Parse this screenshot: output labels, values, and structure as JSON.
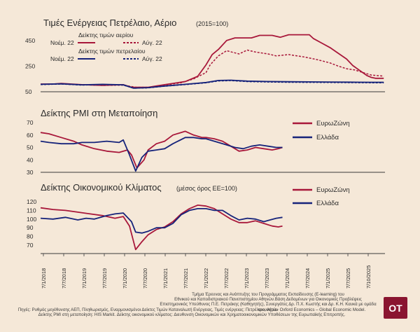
{
  "colors": {
    "red": "#a8173a",
    "blue": "#16237a",
    "axis": "#3a3a3a",
    "background": "#f5e8d8"
  },
  "x_ticks": [
    "7/1/2018",
    "7/7/2018",
    "7/1/2019",
    "7/7/2019",
    "7/1/2020",
    "7/7/2020",
    "7/1/2021",
    "7/7/2021",
    "7/1/2022",
    "7/7/2022",
    "7/1/2023",
    "7/7/2023",
    "7/1/2024",
    "7/7/2024",
    "7/1/2025",
    "7/7/2025",
    "7/10/2025"
  ],
  "chart_data": [
    {
      "type": "line",
      "title": "Τιμές Ενέργειας Πετρέλαιο, Αέριο",
      "subtitle": "(2015=100)",
      "yticks": [
        50,
        250,
        450
      ],
      "ylim": [
        50,
        520
      ],
      "legend": {
        "gas_title": "Δείκτης τιμών αερίου",
        "oil_title": "Δείκτης τιμών πετρελαίου",
        "solid_label": "Νοέμ. 22",
        "dashed_label": "Αύγ. 22"
      },
      "series": [
        {
          "key": "gas_nov",
          "color": "red",
          "dashed": false,
          "points": [
            [
              2018.0,
              110
            ],
            [
              2018.3,
              110
            ],
            [
              2018.5,
              115
            ],
            [
              2019.0,
              105
            ],
            [
              2019.5,
              100
            ],
            [
              2020.0,
              105
            ],
            [
              2020.2,
              85
            ],
            [
              2020.6,
              85
            ],
            [
              2021.0,
              105
            ],
            [
              2021.5,
              130
            ],
            [
              2021.8,
              170
            ],
            [
              2022.0,
              260
            ],
            [
              2022.15,
              340
            ],
            [
              2022.3,
              380
            ],
            [
              2022.5,
              450
            ],
            [
              2022.7,
              470
            ],
            [
              2023.1,
              470
            ],
            [
              2023.3,
              490
            ],
            [
              2023.6,
              490
            ],
            [
              2023.8,
              475
            ],
            [
              2024.0,
              495
            ],
            [
              2024.5,
              495
            ],
            [
              2024.6,
              465
            ],
            [
              2024.8,
              430
            ],
            [
              2025.0,
              395
            ],
            [
              2025.2,
              350
            ],
            [
              2025.4,
              305
            ],
            [
              2025.55,
              255
            ],
            [
              2025.7,
              220
            ],
            [
              2025.9,
              175
            ],
            [
              2026.0,
              162
            ],
            [
              2026.1,
              155
            ],
            [
              2026.3,
              155
            ]
          ]
        },
        {
          "key": "gas_aug",
          "color": "red",
          "dashed": true,
          "points": [
            [
              2018.0,
              108
            ],
            [
              2018.5,
              112
            ],
            [
              2019.0,
              105
            ],
            [
              2019.5,
              100
            ],
            [
              2020.0,
              102
            ],
            [
              2020.3,
              85
            ],
            [
              2020.7,
              85
            ],
            [
              2021.0,
              102
            ],
            [
              2021.4,
              120
            ],
            [
              2021.7,
              150
            ],
            [
              2022.0,
              200
            ],
            [
              2022.1,
              260
            ],
            [
              2022.3,
              330
            ],
            [
              2022.5,
              370
            ],
            [
              2022.8,
              345
            ],
            [
              2023.0,
              375
            ],
            [
              2023.2,
              360
            ],
            [
              2023.5,
              345
            ],
            [
              2023.7,
              330
            ],
            [
              2024.0,
              340
            ],
            [
              2024.4,
              320
            ],
            [
              2024.7,
              300
            ],
            [
              2025.0,
              275
            ],
            [
              2025.2,
              250
            ],
            [
              2025.4,
              230
            ],
            [
              2025.6,
              220
            ],
            [
              2025.8,
              200
            ],
            [
              2026.0,
              180
            ],
            [
              2026.3,
              172
            ]
          ]
        },
        {
          "key": "oil_nov",
          "color": "blue",
          "dashed": false,
          "points": [
            [
              2018.0,
              108
            ],
            [
              2018.5,
              112
            ],
            [
              2019.0,
              104
            ],
            [
              2019.5,
              108
            ],
            [
              2020.0,
              104
            ],
            [
              2020.25,
              78
            ],
            [
              2020.6,
              82
            ],
            [
              2021.0,
              95
            ],
            [
              2021.5,
              108
            ],
            [
              2022.0,
              122
            ],
            [
              2022.3,
              138
            ],
            [
              2022.6,
              140
            ],
            [
              2023.0,
              133
            ],
            [
              2023.5,
              130
            ],
            [
              2024.0,
              128
            ],
            [
              2024.5,
              127
            ],
            [
              2025.0,
              126
            ],
            [
              2025.5,
              125
            ],
            [
              2026.0,
              124
            ],
            [
              2026.3,
              124
            ]
          ]
        },
        {
          "key": "oil_aug",
          "color": "blue",
          "dashed": true,
          "points": [
            [
              2018.0,
              106
            ],
            [
              2018.5,
              110
            ],
            [
              2019.0,
              102
            ],
            [
              2019.5,
              106
            ],
            [
              2020.0,
              102
            ],
            [
              2020.25,
              78
            ],
            [
              2020.6,
              80
            ],
            [
              2021.0,
              93
            ],
            [
              2021.5,
              106
            ],
            [
              2022.0,
              120
            ],
            [
              2022.3,
              134
            ],
            [
              2022.6,
              137
            ],
            [
              2023.0,
              129
            ],
            [
              2023.5,
              126
            ],
            [
              2024.0,
              124
            ],
            [
              2024.5,
              123
            ],
            [
              2025.0,
              122
            ],
            [
              2025.5,
              121
            ],
            [
              2026.0,
              120
            ],
            [
              2026.3,
              120
            ]
          ]
        }
      ]
    },
    {
      "type": "line",
      "title": "Δείκτης PMI στη Μεταποίηση",
      "yticks": [
        30,
        40,
        50,
        60,
        70
      ],
      "ylim": [
        30,
        70
      ],
      "legend": {
        "eu": "ΕυρωΖώνη",
        "gr": "Ελλάδα"
      },
      "series": [
        {
          "key": "eu",
          "color": "red",
          "dashed": false,
          "points": [
            [
              2018.0,
              62
            ],
            [
              2018.2,
              61
            ],
            [
              2018.5,
              58
            ],
            [
              2018.8,
              55
            ],
            [
              2019.0,
              52
            ],
            [
              2019.3,
              49
            ],
            [
              2019.6,
              47
            ],
            [
              2019.9,
              46
            ],
            [
              2020.1,
              48
            ],
            [
              2020.2,
              44
            ],
            [
              2020.33,
              33.5
            ],
            [
              2020.5,
              40
            ],
            [
              2020.6,
              48
            ],
            [
              2020.8,
              53
            ],
            [
              2021.0,
              55
            ],
            [
              2021.2,
              60
            ],
            [
              2021.5,
              63
            ],
            [
              2021.7,
              60
            ],
            [
              2021.9,
              58
            ],
            [
              2022.0,
              58
            ],
            [
              2022.2,
              57
            ],
            [
              2022.4,
              55
            ],
            [
              2022.6,
              51
            ],
            [
              2022.8,
              47
            ],
            [
              2023.0,
              48
            ],
            [
              2023.2,
              50
            ],
            [
              2023.4,
              49
            ],
            [
              2023.6,
              48
            ],
            [
              2023.75,
              49
            ],
            [
              2023.85,
              50
            ]
          ]
        },
        {
          "key": "gr",
          "color": "blue",
          "dashed": false,
          "points": [
            [
              2018.0,
              55
            ],
            [
              2018.2,
              54
            ],
            [
              2018.5,
              53
            ],
            [
              2018.8,
              53
            ],
            [
              2019.0,
              54
            ],
            [
              2019.3,
              54
            ],
            [
              2019.6,
              55
            ],
            [
              2019.9,
              54
            ],
            [
              2020.0,
              56
            ],
            [
              2020.15,
              44
            ],
            [
              2020.3,
              31
            ],
            [
              2020.45,
              42
            ],
            [
              2020.6,
              47
            ],
            [
              2020.8,
              48
            ],
            [
              2021.0,
              49
            ],
            [
              2021.2,
              53
            ],
            [
              2021.5,
              58
            ],
            [
              2021.7,
              58
            ],
            [
              2021.9,
              57
            ],
            [
              2022.0,
              57
            ],
            [
              2022.3,
              54
            ],
            [
              2022.5,
              52
            ],
            [
              2022.7,
              50
            ],
            [
              2022.9,
              49
            ],
            [
              2023.1,
              51
            ],
            [
              2023.3,
              52
            ],
            [
              2023.5,
              51
            ],
            [
              2023.7,
              50
            ],
            [
              2023.85,
              50
            ]
          ]
        }
      ]
    },
    {
      "type": "line",
      "title": "Δείκτης Οικονομικού Κλίματος",
      "subtitle": "(μέσος όρος ΕΕ=100)",
      "yticks": [
        70,
        80,
        90,
        100,
        110,
        120
      ],
      "ylim": [
        62,
        124
      ],
      "legend": {
        "eu": "ΕυρωΖώνη",
        "gr": "Ελλάδα"
      },
      "series": [
        {
          "key": "eu",
          "color": "red",
          "dashed": false,
          "points": [
            [
              2018.0,
              113
            ],
            [
              2018.3,
              111
            ],
            [
              2018.6,
              110
            ],
            [
              2018.9,
              108
            ],
            [
              2019.2,
              106
            ],
            [
              2019.5,
              104
            ],
            [
              2019.8,
              101
            ],
            [
              2020.0,
              103
            ],
            [
              2020.15,
              92
            ],
            [
              2020.3,
              65
            ],
            [
              2020.45,
              74
            ],
            [
              2020.6,
              82
            ],
            [
              2020.8,
              88
            ],
            [
              2021.0,
              91
            ],
            [
              2021.2,
              97
            ],
            [
              2021.4,
              106
            ],
            [
              2021.6,
              112
            ],
            [
              2021.8,
              116
            ],
            [
              2022.0,
              115
            ],
            [
              2022.2,
              112
            ],
            [
              2022.4,
              106
            ],
            [
              2022.6,
              100
            ],
            [
              2022.8,
              96
            ],
            [
              2023.0,
              96
            ],
            [
              2023.2,
              98
            ],
            [
              2023.4,
              95
            ],
            [
              2023.6,
              92
            ],
            [
              2023.75,
              91
            ],
            [
              2023.85,
              92
            ]
          ]
        },
        {
          "key": "gr",
          "color": "blue",
          "dashed": false,
          "points": [
            [
              2018.0,
              101
            ],
            [
              2018.3,
              100
            ],
            [
              2018.6,
              102
            ],
            [
              2018.9,
              99
            ],
            [
              2019.1,
              101
            ],
            [
              2019.3,
              100
            ],
            [
              2019.6,
              104
            ],
            [
              2019.8,
              106
            ],
            [
              2020.0,
              107
            ],
            [
              2020.2,
              97
            ],
            [
              2020.3,
              85
            ],
            [
              2020.45,
              84
            ],
            [
              2020.6,
              86
            ],
            [
              2020.8,
              90
            ],
            [
              2021.0,
              90
            ],
            [
              2021.2,
              95
            ],
            [
              2021.4,
              105
            ],
            [
              2021.6,
              110
            ],
            [
              2021.8,
              112
            ],
            [
              2022.0,
              112
            ],
            [
              2022.2,
              110
            ],
            [
              2022.4,
              110
            ],
            [
              2022.6,
              104
            ],
            [
              2022.8,
              99
            ],
            [
              2023.0,
              101
            ],
            [
              2023.2,
              100
            ],
            [
              2023.4,
              97
            ],
            [
              2023.55,
              99
            ],
            [
              2023.7,
              101
            ],
            [
              2023.85,
              102
            ]
          ]
        }
      ]
    }
  ],
  "footer": {
    "line1": "Τμήμα Έρευνας και Ανάπτυξης του Προγράμματος Εκπαίδευσης (E-learning) του",
    "line2": "Εθνικού και Καποδιστριακού Πανεπιστημίου Αθηνών.Βάση Δεδομένων για Οικονομικές Προβλέψεις",
    "line3": "Επιστημονικός Υπεύθυνος Π.Ε. Πετράκης (Καθηγητής), Συνεργάτες Δρ. Π.Χ. Κωστής και Δρ. Κ.Η. Καυκά με ομάδα ερευνητών",
    "line4": "Πηγές: Ρυθμός μεγέθυνσης ΑΕΠ, Πληθωρισμός, Εναρμονισμένοι Δείκτες Τιμών Καταναλωτή Ενέργειας, Τιμές ενέργειας: Πετρέλαιο, Αέριο- Oxford Economics – Global Economic Model.",
    "line5": "Δείκτης PMI στη μεταποίηση: HIS Markit. Δείκτης οικονομικού κλίματος: Διευθυνση Οικονομικών και Χρηματοοικονομικών Υποθέσεων της Ευρωπαϊκής Επιτροπής."
  },
  "logo": "ΟΤ"
}
